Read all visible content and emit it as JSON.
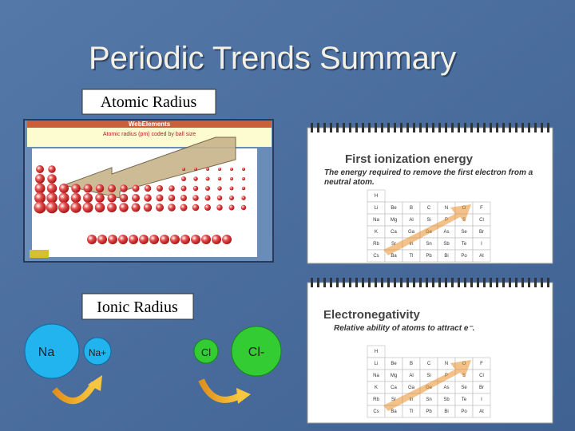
{
  "title": "Periodic Trends Summary",
  "atomic_radius": {
    "label": "Atomic Radius",
    "image": {
      "header": "WebElements",
      "caption": "Atomic radius (pm) coded by ball size"
    }
  },
  "ionic_radius": {
    "label": "Ionic Radius",
    "ions": [
      "Na",
      "Na+",
      "Cl",
      "Cl-"
    ]
  },
  "ionization_card": {
    "title": "First ionization energy",
    "description": "The energy required to remove the first electron from a neutral atom."
  },
  "electronegativity_card": {
    "title": "Electronegativity",
    "description": "Relative ability of atoms to attract e⁻."
  },
  "element_table": {
    "rows": [
      [
        "H"
      ],
      [
        "Li",
        "Be",
        "B",
        "C",
        "N",
        "O",
        "F"
      ],
      [
        "Na",
        "Mg",
        "Al",
        "Si",
        "P",
        "S",
        "Cl"
      ],
      [
        "K",
        "Ca",
        "Ga",
        "Ge",
        "As",
        "Se",
        "Br"
      ],
      [
        "Rb",
        "Sr",
        "In",
        "Sn",
        "Sb",
        "Te",
        "I"
      ],
      [
        "Cs",
        "Ba",
        "Tl",
        "Pb",
        "Bi",
        "Po",
        "At"
      ]
    ]
  }
}
